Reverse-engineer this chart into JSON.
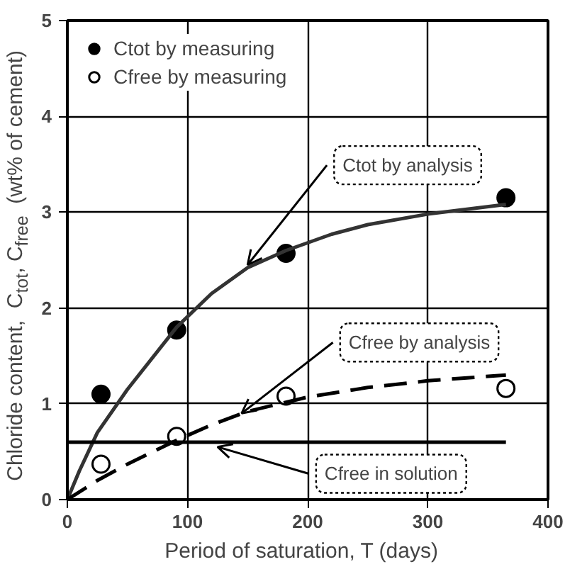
{
  "chart_data": {
    "type": "scatter",
    "xlabel": "Period of saturation,  T  (days)",
    "ylabel": "Chloride content,  C$_{tot}$, C$_{free}$  (wt% of cement)",
    "xlim": [
      0,
      400
    ],
    "ylim": [
      0,
      5
    ],
    "xticks": [
      0,
      100,
      200,
      300,
      400
    ],
    "yticks": [
      0,
      1,
      2,
      3,
      4,
      5
    ],
    "grid": true,
    "legend": "top left",
    "series": [
      {
        "name": "Ctot by measuring",
        "type": "scatter",
        "marker": "circle",
        "color": "#000000",
        "x": [
          28,
          91,
          182,
          365
        ],
        "values": [
          1.1,
          1.77,
          2.57,
          3.15
        ]
      },
      {
        "name": "Cfree by measuring",
        "type": "scatter",
        "marker": "circle",
        "color": "#ffffff",
        "x": [
          28,
          91,
          182,
          365
        ],
        "values": [
          0.37,
          0.66,
          1.08,
          1.16
        ]
      },
      {
        "type": "line",
        "line_style": "solid",
        "color": "#333333",
        "x": [
          0,
          10,
          25,
          50,
          91,
          120,
          150,
          182,
          220,
          250,
          300,
          365
        ],
        "values": [
          0,
          0.3,
          0.7,
          1.15,
          1.8,
          2.15,
          2.42,
          2.6,
          2.77,
          2.87,
          2.98,
          3.08
        ]
      },
      {
        "type": "line",
        "line_style": "dashed",
        "color": "#000000",
        "x": [
          0,
          25,
          50,
          91,
          120,
          150,
          200,
          250,
          300,
          365
        ],
        "values": [
          0,
          0.2,
          0.37,
          0.62,
          0.78,
          0.92,
          1.07,
          1.17,
          1.24,
          1.3
        ]
      },
      {
        "type": "line",
        "line_style": "solid",
        "color": "#000000",
        "x": [
          0,
          365
        ],
        "values": [
          0.6,
          0.6
        ]
      }
    ],
    "annotations": [
      {
        "text": "Ctot by analysis",
        "x": 150,
        "y": 2.45
      },
      {
        "text": "Cfree by analysis",
        "x": 145,
        "y": 0.9
      },
      {
        "text": "Cfree in solution",
        "x": 125,
        "y": 0.55
      }
    ]
  }
}
